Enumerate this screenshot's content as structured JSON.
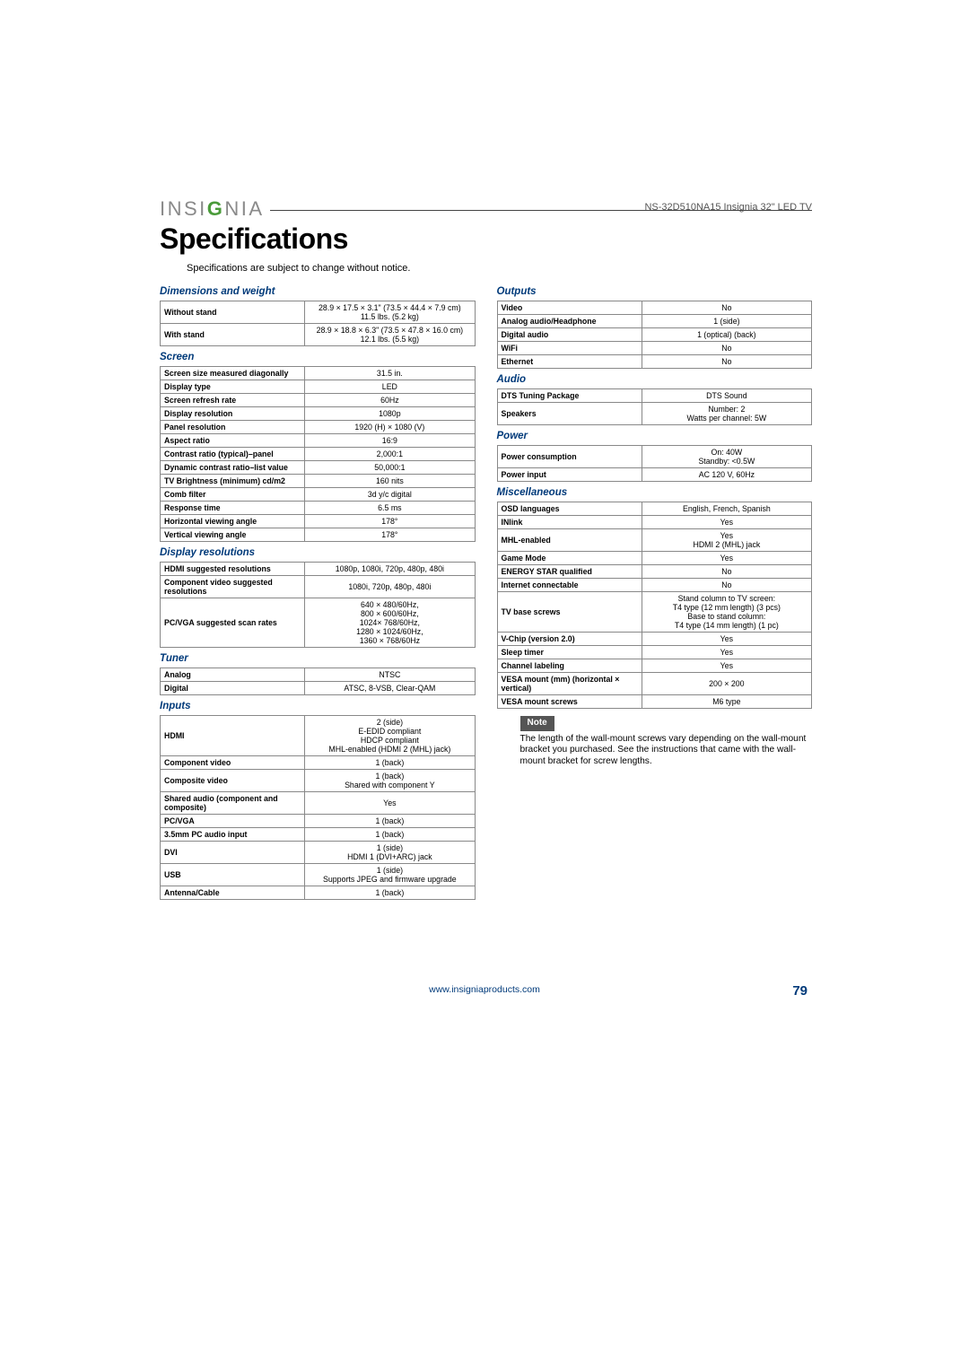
{
  "header": {
    "product": "NS-32D510NA15 Insignia 32\" LED TV"
  },
  "logo": {
    "text_pre": "INSI",
    "text_accent": "G",
    "text_post": "NIA"
  },
  "title": "Specifications",
  "subhead": "Specifications are subject to change without notice.",
  "sections": {
    "dimensions": {
      "title": "Dimensions and weight",
      "rows": [
        {
          "k": "Without stand",
          "v": "28.9 × 17.5 × 3.1\" (73.5 × 44.4 × 7.9 cm)\n11.5 lbs. (5.2 kg)"
        },
        {
          "k": "With stand",
          "v": "28.9 × 18.8 × 6.3\" (73.5 × 47.8 × 16.0 cm)\n12.1 lbs. (5.5 kg)"
        }
      ]
    },
    "screen": {
      "title": "Screen",
      "rows": [
        {
          "k": "Screen size measured diagonally",
          "v": "31.5 in."
        },
        {
          "k": "Display type",
          "v": "LED"
        },
        {
          "k": "Screen refresh rate",
          "v": "60Hz"
        },
        {
          "k": "Display resolution",
          "v": "1080p"
        },
        {
          "k": "Panel resolution",
          "v": "1920 (H) × 1080 (V)"
        },
        {
          "k": "Aspect ratio",
          "v": "16:9"
        },
        {
          "k": "Contrast ratio (typical)–panel",
          "v": "2,000:1"
        },
        {
          "k": "Dynamic contrast ratio–list value",
          "v": "50,000:1"
        },
        {
          "k": "TV Brightness (minimum) cd/m2",
          "v": "160 nits"
        },
        {
          "k": "Comb filter",
          "v": "3d y/c digital"
        },
        {
          "k": "Response time",
          "v": "6.5 ms"
        },
        {
          "k": "Horizontal viewing angle",
          "v": "178°"
        },
        {
          "k": "Vertical viewing angle",
          "v": "178°"
        }
      ]
    },
    "display_res": {
      "title": "Display resolutions",
      "rows": [
        {
          "k": "HDMI suggested resolutions",
          "v": "1080p, 1080i, 720p, 480p, 480i"
        },
        {
          "k": "Component video suggested resolutions",
          "v": "1080i, 720p, 480p, 480i"
        },
        {
          "k": "PC/VGA suggested scan rates",
          "v": "640 × 480/60Hz,\n800 × 600/60Hz,\n1024× 768/60Hz,\n1280 × 1024/60Hz,\n1360 × 768/60Hz"
        }
      ]
    },
    "tuner": {
      "title": "Tuner",
      "rows": [
        {
          "k": "Analog",
          "v": "NTSC"
        },
        {
          "k": "Digital",
          "v": "ATSC, 8-VSB, Clear-QAM"
        }
      ]
    },
    "inputs": {
      "title": "Inputs",
      "rows": [
        {
          "k": "HDMI",
          "v": "2 (side)\nE-EDID compliant\nHDCP compliant\nMHL-enabled (HDMI 2 (MHL) jack)"
        },
        {
          "k": "Component video",
          "v": "1 (back)"
        },
        {
          "k": "Composite video",
          "v": "1 (back)\nShared with component Y"
        },
        {
          "k": "Shared audio (component and composite)",
          "v": "Yes"
        },
        {
          "k": "PC/VGA",
          "v": "1 (back)"
        },
        {
          "k": "3.5mm PC audio input",
          "v": "1 (back)"
        },
        {
          "k": "DVI",
          "v": "1 (side)\nHDMI 1 (DVI+ARC) jack"
        },
        {
          "k": "USB",
          "v": "1 (side)\nSupports JPEG and firmware upgrade"
        },
        {
          "k": "Antenna/Cable",
          "v": "1 (back)"
        }
      ]
    },
    "outputs": {
      "title": "Outputs",
      "rows": [
        {
          "k": "Video",
          "v": "No"
        },
        {
          "k": "Analog audio/Headphone",
          "v": "1 (side)"
        },
        {
          "k": "Digital audio",
          "v": "1 (optical) (back)"
        },
        {
          "k": "WiFi",
          "v": "No"
        },
        {
          "k": "Ethernet",
          "v": "No"
        }
      ]
    },
    "audio": {
      "title": "Audio",
      "rows": [
        {
          "k": "DTS Tuning Package",
          "v": "DTS Sound"
        },
        {
          "k": "Speakers",
          "v": "Number: 2\nWatts per channel: 5W"
        }
      ]
    },
    "power": {
      "title": "Power",
      "rows": [
        {
          "k": "Power consumption",
          "v": "On: 40W\nStandby: <0.5W"
        },
        {
          "k": "Power input",
          "v": "AC 120 V, 60Hz"
        }
      ]
    },
    "misc": {
      "title": "Miscellaneous",
      "rows": [
        {
          "k": "OSD languages",
          "v": "English, French, Spanish"
        },
        {
          "k": "INlink",
          "v": "Yes"
        },
        {
          "k": "MHL-enabled",
          "v": "Yes\nHDMI 2 (MHL) jack"
        },
        {
          "k": "Game Mode",
          "v": "Yes"
        },
        {
          "k": "ENERGY STAR qualified",
          "v": "No"
        },
        {
          "k": "Internet connectable",
          "v": "No"
        },
        {
          "k": "TV base screws",
          "v": "Stand column to TV screen:\nT4 type (12 mm length) (3 pcs)\nBase to stand column:\nT4 type (14 mm length) (1 pc)"
        },
        {
          "k": "V-Chip (version 2.0)",
          "v": "Yes"
        },
        {
          "k": "Sleep timer",
          "v": "Yes"
        },
        {
          "k": "Channel labeling",
          "v": "Yes"
        },
        {
          "k": "VESA mount (mm) (horizontal × vertical)",
          "v": "200 × 200"
        },
        {
          "k": "VESA mount screws",
          "v": "M6 type"
        }
      ]
    }
  },
  "note": {
    "label": "Note",
    "text": "The length of the wall-mount screws vary depending on the wall-mount bracket you purchased. See the instructions that came with the wall-mount bracket for screw lengths."
  },
  "footer": {
    "url": "www.insigniaproducts.com",
    "page": "79"
  }
}
